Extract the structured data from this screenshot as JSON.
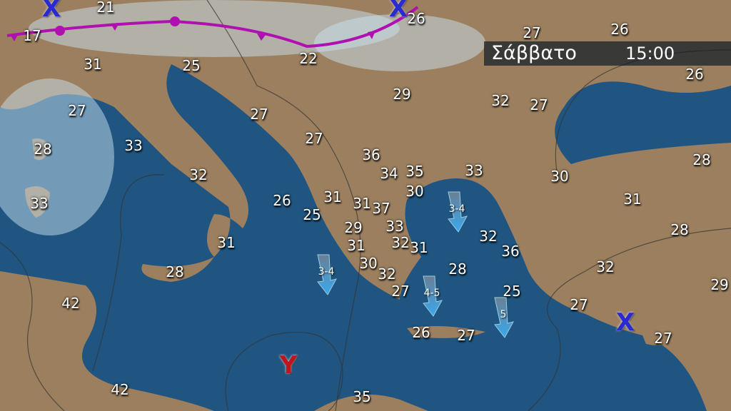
{
  "banner": {
    "day": "Σάββατο",
    "time": "15:00"
  },
  "colors": {
    "sea": "#1f5580",
    "land": "#a08060",
    "front": "#b010b0",
    "high": "#2a2ad0",
    "low": "#c0141c",
    "arrow": "#3aa0e0"
  },
  "temperatures": [
    "21",
    "17",
    "26",
    "27",
    "26",
    "22",
    "31",
    "25",
    "26",
    "29",
    "32",
    "27",
    "27",
    "27",
    "28",
    "33",
    "27",
    "36",
    "28",
    "32",
    "34",
    "35",
    "33",
    "30",
    "33",
    "26",
    "31",
    "30",
    "31",
    "25",
    "31",
    "37",
    "29",
    "33",
    "28",
    "31",
    "31",
    "32",
    "31",
    "32",
    "36",
    "28",
    "30",
    "32",
    "28",
    "32",
    "42",
    "27",
    "25",
    "29",
    "27",
    "26",
    "27",
    "27",
    "42",
    "35"
  ],
  "wind_arrows": [
    {
      "label": "3-4",
      "direction": "south"
    },
    {
      "label": "3-4",
      "direction": "south"
    },
    {
      "label": "4-5",
      "direction": "south"
    },
    {
      "label": "5",
      "direction": "south"
    }
  ],
  "pressure_symbols": [
    {
      "label": "X",
      "type": "high"
    },
    {
      "label": "X",
      "type": "high"
    },
    {
      "label": "X",
      "type": "high"
    },
    {
      "label": "Y",
      "type": "low"
    }
  ]
}
